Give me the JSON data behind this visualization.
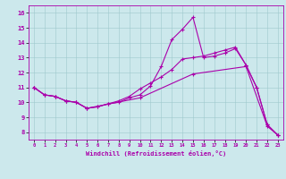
{
  "xlabel": "Windchill (Refroidissement éolien,°C)",
  "background_color": "#cce8ec",
  "line_color": "#aa00aa",
  "xlim": [
    -0.5,
    23.5
  ],
  "ylim": [
    7.5,
    16.5
  ],
  "yticks": [
    8,
    9,
    10,
    11,
    12,
    13,
    14,
    15,
    16
  ],
  "xticks": [
    0,
    1,
    2,
    3,
    4,
    5,
    6,
    7,
    8,
    9,
    10,
    11,
    12,
    13,
    14,
    15,
    16,
    17,
    18,
    19,
    20,
    21,
    22,
    23
  ],
  "line1_x": [
    0,
    1,
    2,
    3,
    4,
    5,
    6,
    7,
    8,
    9,
    10,
    11,
    12,
    13,
    14,
    15,
    16,
    17,
    18,
    19,
    20,
    21,
    22,
    23
  ],
  "line1_y": [
    11.0,
    10.5,
    10.4,
    10.1,
    10.0,
    9.6,
    9.7,
    9.9,
    10.0,
    10.3,
    10.5,
    11.1,
    12.4,
    14.2,
    14.9,
    15.7,
    13.0,
    13.1,
    13.3,
    13.6,
    12.5,
    11.0,
    8.5,
    7.8
  ],
  "line2_x": [
    0,
    1,
    2,
    3,
    4,
    5,
    6,
    7,
    8,
    9,
    10,
    11,
    12,
    13,
    14,
    15,
    16,
    17,
    18,
    19,
    20,
    21,
    22,
    23
  ],
  "line2_y": [
    11.0,
    10.5,
    10.4,
    10.1,
    10.0,
    9.6,
    9.7,
    9.9,
    10.1,
    10.4,
    10.9,
    11.3,
    11.7,
    12.2,
    12.9,
    13.0,
    13.1,
    13.3,
    13.5,
    13.7,
    12.5,
    11.0,
    8.5,
    7.8
  ],
  "line3_x": [
    0,
    1,
    2,
    3,
    4,
    5,
    10,
    15,
    20,
    22,
    23
  ],
  "line3_y": [
    11.0,
    10.5,
    10.4,
    10.1,
    10.0,
    9.6,
    10.3,
    11.9,
    12.4,
    8.4,
    7.8
  ]
}
